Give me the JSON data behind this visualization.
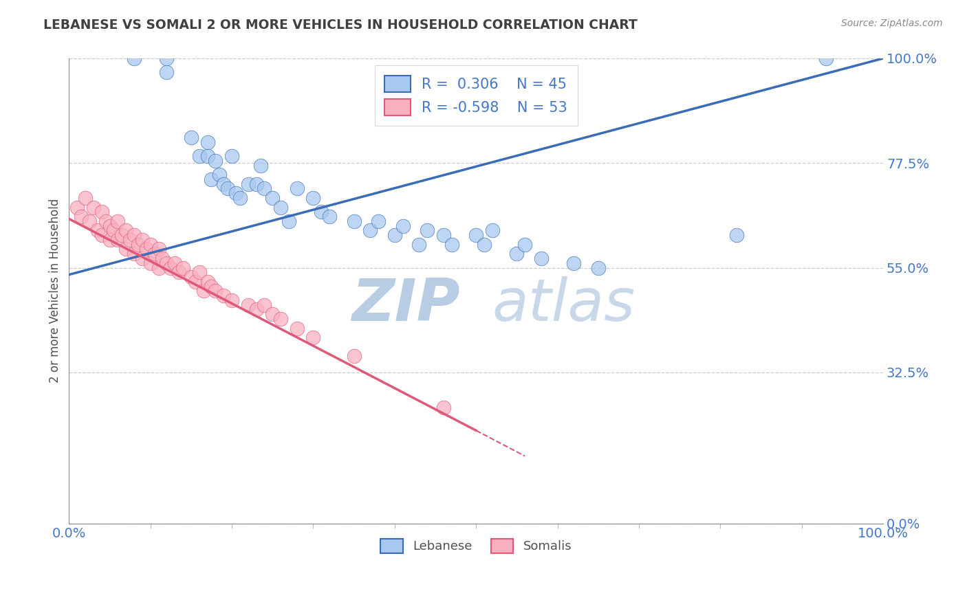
{
  "title": "LEBANESE VS SOMALI 2 OR MORE VEHICLES IN HOUSEHOLD CORRELATION CHART",
  "source": "Source: ZipAtlas.com",
  "ylabel": "2 or more Vehicles in Household",
  "xlim": [
    0.0,
    1.0
  ],
  "ylim": [
    0.0,
    1.0
  ],
  "yticks": [
    0.0,
    0.325,
    0.55,
    0.775,
    1.0
  ],
  "ytick_labels": [
    "0.0%",
    "32.5%",
    "55.0%",
    "77.5%",
    "100.0%"
  ],
  "xtick_labels": [
    "0.0%",
    "100.0%"
  ],
  "legend_r_lebanese": "R =  0.306",
  "legend_n_lebanese": "N = 45",
  "legend_r_somali": "R = -0.598",
  "legend_n_somali": "N = 53",
  "color_lebanese": "#a8c8f0",
  "color_somali": "#f8b0c0",
  "line_color_lebanese": "#3a6db5",
  "line_color_somali": "#e05878",
  "watermark_zip": "ZIP",
  "watermark_atlas": "atlas",
  "watermark_color": "#c8ddf0",
  "background_color": "#ffffff",
  "grid_color": "#cccccc",
  "title_color": "#404040",
  "axis_label_color": "#505050",
  "tick_color": "#4477cc",
  "figsize": [
    14.06,
    8.92
  ],
  "dpi": 100,
  "lebanese_x": [
    0.08,
    0.12,
    0.12,
    0.15,
    0.16,
    0.17,
    0.17,
    0.175,
    0.18,
    0.185,
    0.19,
    0.195,
    0.2,
    0.205,
    0.21,
    0.22,
    0.23,
    0.235,
    0.24,
    0.25,
    0.26,
    0.27,
    0.28,
    0.3,
    0.31,
    0.32,
    0.35,
    0.37,
    0.38,
    0.4,
    0.41,
    0.43,
    0.44,
    0.46,
    0.47,
    0.5,
    0.51,
    0.52,
    0.55,
    0.56,
    0.58,
    0.62,
    0.65,
    0.82,
    0.93
  ],
  "lebanese_y": [
    1.0,
    1.0,
    0.97,
    0.83,
    0.79,
    0.82,
    0.79,
    0.74,
    0.78,
    0.75,
    0.73,
    0.72,
    0.79,
    0.71,
    0.7,
    0.73,
    0.73,
    0.77,
    0.72,
    0.7,
    0.68,
    0.65,
    0.72,
    0.7,
    0.67,
    0.66,
    0.65,
    0.63,
    0.65,
    0.62,
    0.64,
    0.6,
    0.63,
    0.62,
    0.6,
    0.62,
    0.6,
    0.63,
    0.58,
    0.6,
    0.57,
    0.56,
    0.55,
    0.62,
    1.0
  ],
  "somali_x": [
    0.01,
    0.015,
    0.02,
    0.025,
    0.03,
    0.035,
    0.04,
    0.04,
    0.045,
    0.05,
    0.05,
    0.055,
    0.06,
    0.06,
    0.065,
    0.07,
    0.07,
    0.075,
    0.08,
    0.08,
    0.085,
    0.09,
    0.09,
    0.095,
    0.1,
    0.1,
    0.105,
    0.11,
    0.11,
    0.115,
    0.12,
    0.125,
    0.13,
    0.135,
    0.14,
    0.15,
    0.155,
    0.16,
    0.165,
    0.17,
    0.175,
    0.18,
    0.19,
    0.2,
    0.22,
    0.23,
    0.24,
    0.25,
    0.26,
    0.28,
    0.3,
    0.35,
    0.46
  ],
  "somali_y": [
    0.68,
    0.66,
    0.7,
    0.65,
    0.68,
    0.63,
    0.67,
    0.62,
    0.65,
    0.64,
    0.61,
    0.63,
    0.65,
    0.61,
    0.62,
    0.63,
    0.59,
    0.61,
    0.62,
    0.58,
    0.6,
    0.61,
    0.57,
    0.59,
    0.6,
    0.56,
    0.58,
    0.59,
    0.55,
    0.57,
    0.56,
    0.55,
    0.56,
    0.54,
    0.55,
    0.53,
    0.52,
    0.54,
    0.5,
    0.52,
    0.51,
    0.5,
    0.49,
    0.48,
    0.47,
    0.46,
    0.47,
    0.45,
    0.44,
    0.42,
    0.4,
    0.36,
    0.25
  ],
  "line_leb_x0": 0.0,
  "line_leb_y0": 0.535,
  "line_leb_x1": 1.0,
  "line_leb_y1": 1.0,
  "line_som_x0": 0.0,
  "line_som_y0": 0.655,
  "line_som_x1": 0.5,
  "line_som_y1": 0.2,
  "line_som_dash_x0": 0.5,
  "line_som_dash_y0": 0.2,
  "line_som_dash_x1": 0.56,
  "line_som_dash_y1": 0.145
}
